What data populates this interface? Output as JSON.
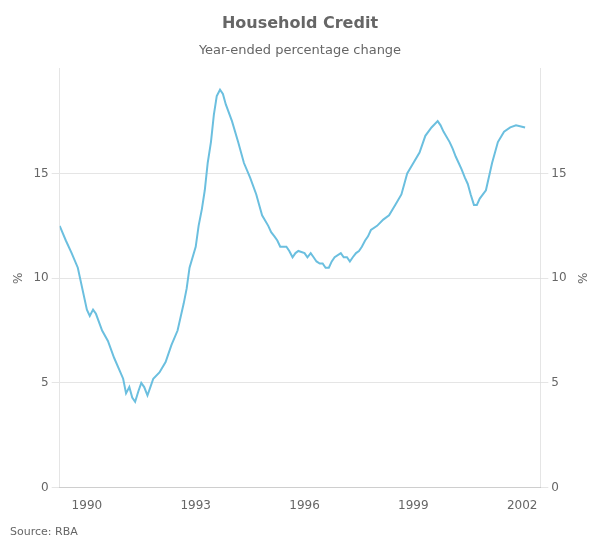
{
  "chart_data": {
    "type": "line",
    "title": "Household Credit",
    "subtitle": "Year-ended percentage change",
    "source": "Source: RBA",
    "ylabel": "%",
    "y2label": "%",
    "color": "#6bbfdf",
    "xlim": [
      1989.25,
      2002.5
    ],
    "xticks": [
      1990,
      1993,
      1996,
      1999,
      2002
    ],
    "ylim": [
      0,
      20
    ],
    "yticks": [
      0,
      5,
      10,
      15
    ],
    "y2lim": [
      0,
      20
    ],
    "y2ticks": [
      0,
      5,
      10,
      15
    ],
    "grid": "y",
    "x": [
      1989.25,
      1989.42,
      1989.58,
      1989.75,
      1990.0,
      1990.08,
      1990.17,
      1990.25,
      1990.42,
      1990.58,
      1990.75,
      1991.0,
      1991.08,
      1991.17,
      1991.25,
      1991.33,
      1991.42,
      1991.5,
      1991.58,
      1991.67,
      1991.75,
      1991.83,
      1992.0,
      1992.17,
      1992.33,
      1992.5,
      1992.67,
      1992.75,
      1992.83,
      1993.0,
      1993.08,
      1993.17,
      1993.25,
      1993.33,
      1993.42,
      1993.5,
      1993.58,
      1993.67,
      1993.75,
      1993.83,
      1994.0,
      1994.17,
      1994.33,
      1994.5,
      1994.67,
      1994.75,
      1994.83,
      1995.0,
      1995.08,
      1995.17,
      1995.25,
      1995.33,
      1995.42,
      1995.5,
      1995.58,
      1995.67,
      1995.75,
      1995.83,
      1996.0,
      1996.08,
      1996.17,
      1996.25,
      1996.33,
      1996.42,
      1996.5,
      1996.58,
      1996.67,
      1996.75,
      1996.83,
      1997.0,
      1997.08,
      1997.17,
      1997.25,
      1997.33,
      1997.42,
      1997.5,
      1997.58,
      1997.67,
      1997.75,
      1997.83,
      1998.0,
      1998.17,
      1998.33,
      1998.5,
      1998.67,
      1998.75,
      1998.83,
      1999.0,
      1999.17,
      1999.33,
      1999.5,
      1999.67,
      1999.75,
      1999.83,
      2000.0,
      2000.08,
      2000.17,
      2000.25,
      2000.33,
      2000.42,
      2000.5,
      2000.58,
      2000.67,
      2000.75,
      2000.83,
      2001.0,
      2001.17,
      2001.33,
      2001.5,
      2001.67,
      2001.83,
      2002.08
    ],
    "values": [
      12.5,
      11.8,
      11.2,
      10.5,
      8.5,
      8.2,
      8.5,
      8.3,
      7.5,
      7.0,
      6.2,
      5.2,
      4.5,
      4.8,
      4.3,
      4.1,
      4.6,
      5.0,
      4.8,
      4.4,
      4.8,
      5.2,
      5.5,
      6.0,
      6.8,
      7.5,
      8.8,
      9.5,
      10.5,
      11.5,
      12.5,
      13.3,
      14.2,
      15.5,
      16.5,
      17.8,
      18.7,
      19.0,
      18.8,
      18.3,
      17.5,
      16.5,
      15.5,
      14.8,
      14.0,
      13.5,
      13.0,
      12.5,
      12.2,
      12.0,
      11.8,
      11.5,
      11.5,
      11.5,
      11.3,
      11.0,
      11.2,
      11.3,
      11.2,
      11.0,
      11.2,
      11.0,
      10.8,
      10.7,
      10.7,
      10.5,
      10.5,
      10.8,
      11.0,
      11.2,
      11.0,
      11.0,
      10.8,
      11.0,
      11.2,
      11.3,
      11.5,
      11.8,
      12.0,
      12.3,
      12.5,
      12.8,
      13.0,
      13.5,
      14.0,
      14.5,
      15.0,
      15.5,
      16.0,
      16.8,
      17.2,
      17.5,
      17.3,
      17.0,
      16.5,
      16.2,
      15.8,
      15.5,
      15.2,
      14.8,
      14.5,
      14.0,
      13.5,
      13.5,
      13.8,
      14.2,
      15.5,
      16.5,
      17.0,
      17.2,
      17.3,
      17.2
    ]
  }
}
